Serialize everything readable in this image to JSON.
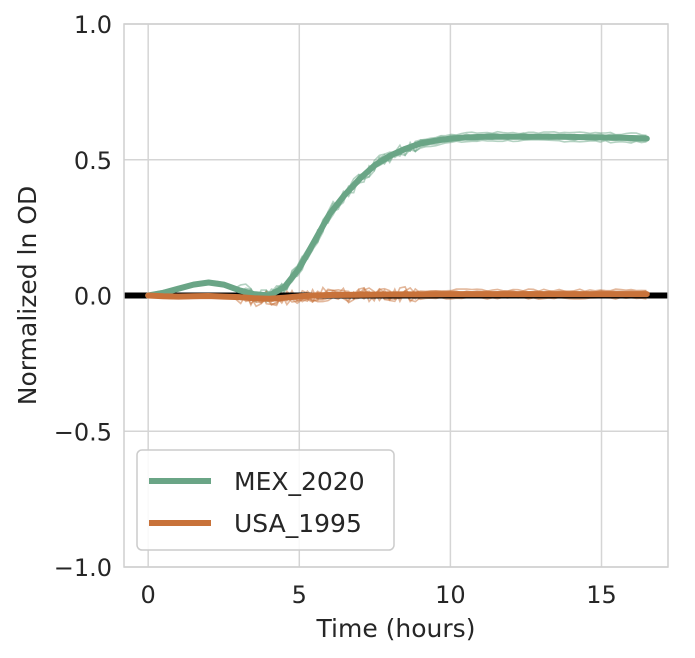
{
  "chart_data": {
    "type": "line",
    "title": "",
    "xlabel": "Time (hours)",
    "ylabel": "Normalized ln OD",
    "xlim": [
      -0.8,
      17.2
    ],
    "ylim": [
      -1.0,
      1.0
    ],
    "xticks": [
      0,
      5,
      10,
      15
    ],
    "yticks": [
      -1.0,
      -0.5,
      0.0,
      0.5,
      1.0
    ],
    "xtick_labels": [
      "0",
      "5",
      "10",
      "15"
    ],
    "ytick_labels": [
      "−1.0",
      "−0.5",
      "0.0",
      "0.5",
      "1.0"
    ],
    "grid": true,
    "legend_position": "lower-left",
    "reference_line": {
      "y": 0.0,
      "color": "#000000"
    },
    "series": [
      {
        "name": "MEX_2020",
        "color": "#6aa586",
        "x": [
          0,
          0.5,
          1,
          1.5,
          2,
          2.5,
          3,
          3.5,
          4,
          4.5,
          5,
          5.5,
          6,
          6.5,
          7,
          7.5,
          8,
          8.5,
          9,
          9.5,
          10,
          10.5,
          11,
          11.5,
          12,
          12.5,
          13,
          13.5,
          14,
          14.5,
          15,
          15.5,
          16,
          16.5
        ],
        "y": [
          0.0,
          0.01,
          0.025,
          0.04,
          0.048,
          0.04,
          0.02,
          0.005,
          0.0,
          0.03,
          0.1,
          0.2,
          0.3,
          0.37,
          0.43,
          0.48,
          0.515,
          0.54,
          0.56,
          0.57,
          0.578,
          0.582,
          0.584,
          0.585,
          0.585,
          0.585,
          0.585,
          0.585,
          0.584,
          0.583,
          0.582,
          0.581,
          0.58,
          0.578
        ]
      },
      {
        "name": "USA_1995",
        "color": "#c8723a",
        "x": [
          0,
          0.5,
          1,
          1.5,
          2,
          2.5,
          3,
          3.5,
          4,
          4.5,
          5,
          5.5,
          6,
          7,
          8,
          9,
          10,
          11,
          12,
          13,
          14,
          15,
          16,
          16.5
        ],
        "y": [
          0.0,
          -0.003,
          -0.004,
          -0.003,
          -0.002,
          -0.004,
          -0.006,
          -0.01,
          -0.012,
          -0.008,
          -0.003,
          0.0,
          0.002,
          0.003,
          0.004,
          0.004,
          0.005,
          0.005,
          0.005,
          0.005,
          0.005,
          0.005,
          0.005,
          0.005
        ]
      }
    ]
  }
}
